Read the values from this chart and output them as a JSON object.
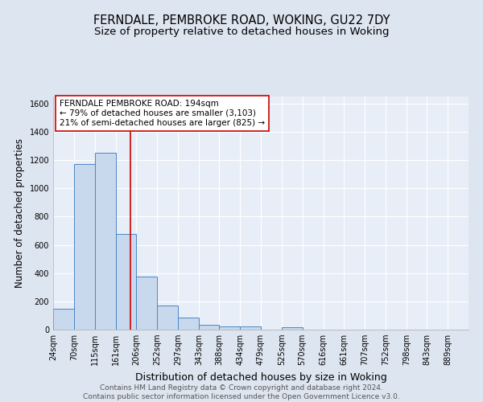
{
  "title_line1": "FERNDALE, PEMBROKE ROAD, WOKING, GU22 7DY",
  "title_line2": "Size of property relative to detached houses in Woking",
  "xlabel": "Distribution of detached houses by size in Woking",
  "ylabel": "Number of detached properties",
  "bar_edges": [
    24,
    70,
    115,
    161,
    206,
    252,
    297,
    343,
    388,
    434,
    479,
    525,
    570,
    616,
    661,
    707,
    752,
    798,
    843,
    889,
    934
  ],
  "bar_heights": [
    150,
    1170,
    1250,
    675,
    375,
    170,
    85,
    35,
    22,
    20,
    0,
    15,
    0,
    0,
    0,
    0,
    0,
    0,
    0,
    0
  ],
  "bar_color": "#c9d9ed",
  "bar_edge_color": "#4a86c8",
  "property_size": 194,
  "red_line_color": "#cc0000",
  "annotation_text": "FERNDALE PEMBROKE ROAD: 194sqm\n← 79% of detached houses are smaller (3,103)\n21% of semi-detached houses are larger (825) →",
  "annotation_box_color": "#ffffff",
  "annotation_box_edge_color": "#cc0000",
  "ylim": [
    0,
    1650
  ],
  "background_color": "#dde5f0",
  "plot_background_color": "#e8eef7",
  "grid_color": "#ffffff",
  "footer_text": "Contains HM Land Registry data © Crown copyright and database right 2024.\nContains public sector information licensed under the Open Government Licence v3.0.",
  "title_fontsize": 10.5,
  "subtitle_fontsize": 9.5,
  "ylabel_fontsize": 8.5,
  "xlabel_fontsize": 9,
  "tick_fontsize": 7,
  "annotation_fontsize": 7.5,
  "footer_fontsize": 6.5
}
